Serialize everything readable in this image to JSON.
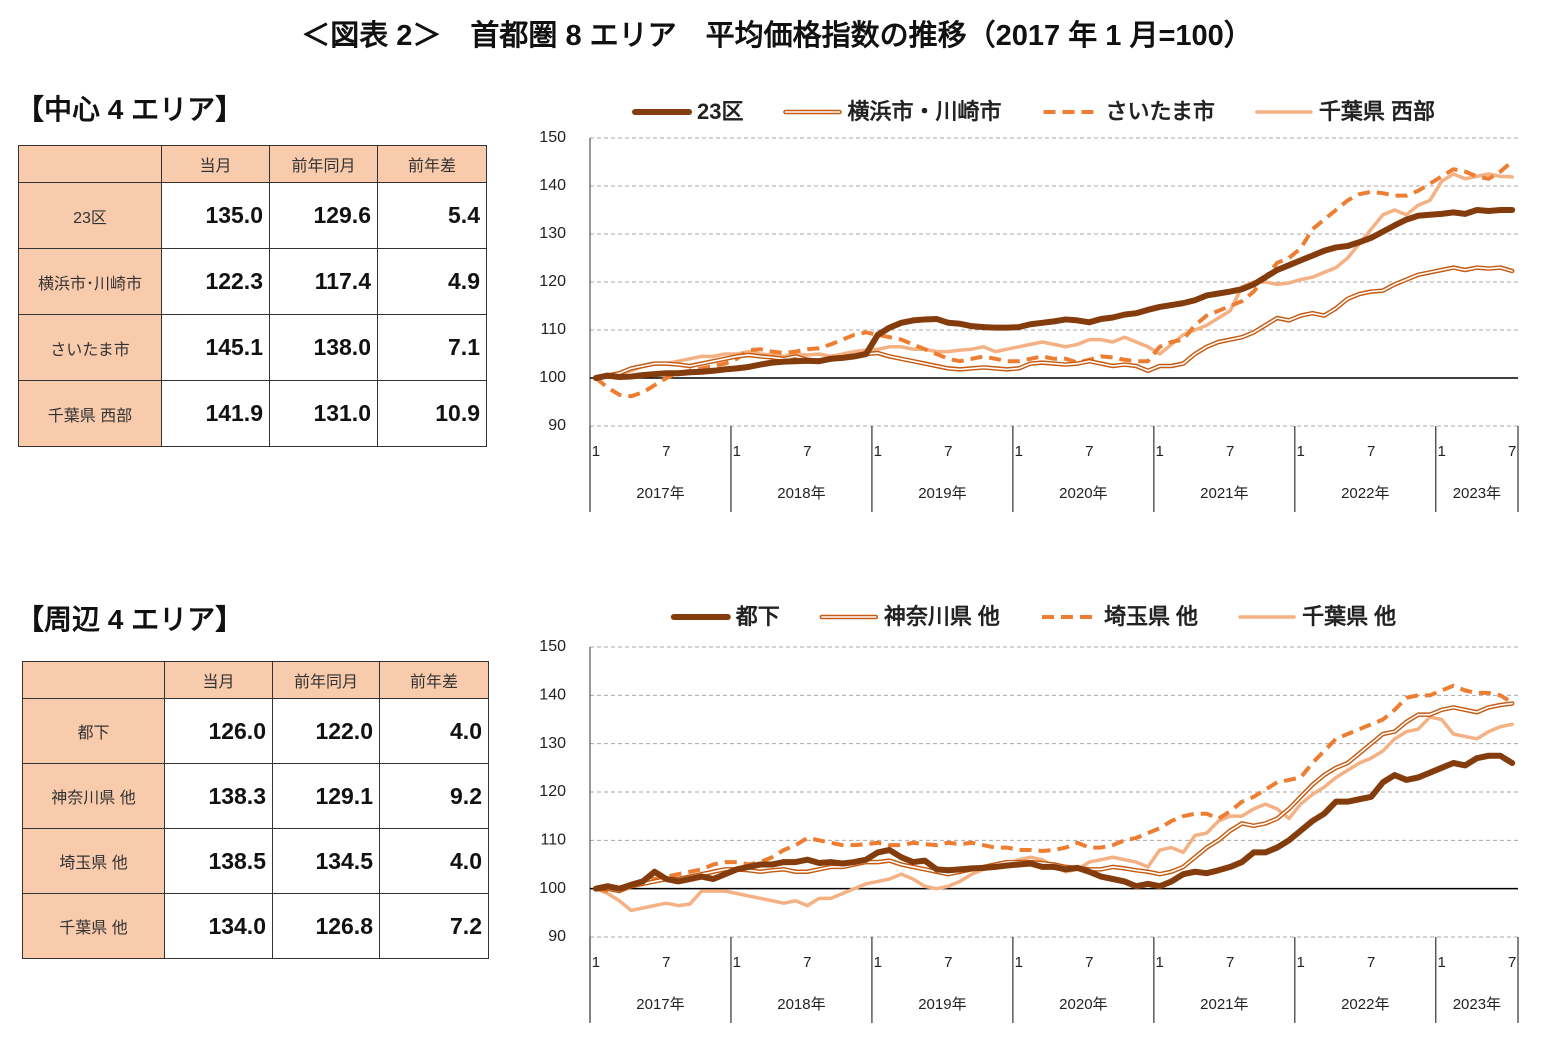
{
  "title": "＜図表 2＞　首都圏 8 エリア　平均価格指数の推移（2017 年 1 月=100）",
  "sections": [
    {
      "heading": "【中心 4 エリア】",
      "table": {
        "header": [
          "当月",
          "前年同月",
          "前年差"
        ],
        "rows": [
          [
            "23区",
            "135.0",
            "129.6",
            "5.4"
          ],
          [
            "横浜市･川崎市",
            "122.3",
            "117.4",
            "4.9"
          ],
          [
            "さいたま市",
            "145.1",
            "138.0",
            "7.1"
          ],
          [
            "千葉県 西部",
            "141.9",
            "131.0",
            "10.9"
          ]
        ]
      }
    },
    {
      "heading": "【周辺 4 エリア】",
      "table": {
        "header": [
          "当月",
          "前年同月",
          "前年差"
        ],
        "rows": [
          [
            "都下",
            "126.0",
            "122.0",
            "4.0"
          ],
          [
            "神奈川県 他",
            "138.3",
            "129.1",
            "9.2"
          ],
          [
            "埼玉県 他",
            "138.5",
            "134.5",
            "4.0"
          ],
          [
            "千葉県 他",
            "134.0",
            "126.8",
            "7.2"
          ]
        ]
      }
    }
  ],
  "chart_data": [
    {
      "type": "line",
      "categories": [
        "1",
        null,
        null,
        null,
        null,
        null,
        "7",
        null,
        null,
        null,
        null,
        null,
        "1",
        null,
        null,
        null,
        null,
        null,
        "7",
        null,
        null,
        null,
        null,
        null,
        "1",
        null,
        null,
        null,
        null,
        null,
        "7",
        null,
        null,
        null,
        null,
        null,
        "1",
        null,
        null,
        null,
        null,
        null,
        "7",
        null,
        null,
        null,
        null,
        null,
        "1",
        null,
        null,
        null,
        null,
        null,
        "7",
        null,
        null,
        null,
        null,
        null,
        "1",
        null,
        null,
        null,
        null,
        null,
        "7",
        null,
        null,
        null,
        null,
        null,
        "1",
        null,
        null,
        null,
        null,
        null,
        "7"
      ],
      "year_labels": [
        "2017年",
        "2018年",
        "2019年",
        "2020年",
        "2021年",
        "2022年",
        "2023年"
      ],
      "ylim": [
        90,
        150
      ],
      "yticks": [
        90,
        100,
        110,
        120,
        130,
        140,
        150
      ],
      "grid": true,
      "baseline": 100,
      "series": [
        {
          "name": "23区",
          "color": "#843c0c",
          "style": "solid",
          "values": [
            100,
            100.5,
            100.2,
            100.3,
            100.6,
            100.8,
            101,
            101,
            101.2,
            101.3,
            101.5,
            101.8,
            102,
            102.3,
            102.8,
            103.2,
            103.4,
            103.5,
            103.6,
            103.5,
            104,
            104.2,
            104.5,
            105,
            109,
            110.5,
            111.5,
            112,
            112.2,
            112.3,
            111.5,
            111.3,
            110.8,
            110.6,
            110.5,
            110.5,
            110.6,
            111.2,
            111.5,
            111.8,
            112.2,
            112,
            111.6,
            112.3,
            112.6,
            113.2,
            113.5,
            114.2,
            114.8,
            115.2,
            115.6,
            116.2,
            117.2,
            117.6,
            118,
            118.5,
            119.5,
            121,
            122.5,
            123.5,
            124.5,
            125.5,
            126.5,
            127.2,
            127.5,
            128.3,
            129.2,
            130.5,
            131.8,
            133,
            133.8,
            134,
            134.2,
            134.5,
            134.2,
            135,
            134.8,
            135,
            135.0
          ]
        },
        {
          "name": "横浜市・川崎市",
          "color": "#c55a11",
          "style": "double",
          "values": [
            100,
            100.5,
            101,
            102,
            102.5,
            103,
            103,
            102.8,
            102.5,
            103,
            103.5,
            104,
            104.5,
            104.8,
            104.5,
            104.3,
            104,
            104.5,
            103.8,
            103.5,
            104,
            104.3,
            104.5,
            105,
            105.2,
            104.5,
            104,
            103.5,
            103,
            102.5,
            102,
            101.8,
            102,
            102.2,
            102,
            101.8,
            102,
            103,
            103.2,
            103,
            102.8,
            103,
            103.5,
            103,
            102.5,
            102.8,
            102.5,
            101.5,
            102.5,
            102.5,
            103,
            105,
            106.5,
            107.5,
            108,
            108.5,
            109.5,
            111,
            112.5,
            112,
            113,
            113.5,
            113,
            114.5,
            116.5,
            117.5,
            118,
            118.2,
            119.5,
            120.5,
            121.5,
            122,
            122.5,
            123,
            122.5,
            123,
            122.8,
            123,
            122.3
          ]
        },
        {
          "name": "さいたま市",
          "color": "#ed7d31",
          "style": "dashed",
          "values": [
            100,
            98,
            96.5,
            96.2,
            97,
            98.5,
            100,
            101,
            101.5,
            102,
            102.5,
            103,
            104,
            105.8,
            106,
            105.5,
            105.2,
            105.5,
            106,
            106.2,
            107,
            108,
            109,
            109.5,
            109,
            108.5,
            108,
            107,
            106,
            105,
            104,
            103.5,
            104,
            104.5,
            104,
            103.5,
            103.5,
            104,
            104.5,
            104,
            104,
            103.2,
            103.8,
            104.5,
            104.3,
            103.8,
            103.5,
            103.5,
            106.5,
            107.5,
            108,
            111,
            113,
            114,
            115,
            116,
            118,
            121,
            124,
            125,
            127,
            131,
            133,
            135,
            137,
            138.3,
            138.8,
            138.5,
            138,
            138,
            139,
            140.5,
            142,
            143.5,
            143,
            142,
            141.5,
            143,
            145.1
          ]
        },
        {
          "name": "千葉県 西部",
          "color": "#f4b183",
          "style": "solid",
          "values": [
            100,
            100.5,
            101,
            101.5,
            102.5,
            103,
            103,
            103.5,
            104,
            104.5,
            104.5,
            105,
            105,
            105.5,
            105,
            104.8,
            104.5,
            105,
            104.8,
            105,
            104.5,
            105,
            105.5,
            105.8,
            106,
            106.5,
            106.5,
            106,
            106,
            105.5,
            105.5,
            105.8,
            106,
            106.5,
            105.5,
            106,
            106.5,
            107,
            107.5,
            107,
            106.5,
            107,
            108,
            108,
            107.5,
            108.5,
            107.5,
            106.5,
            105,
            107,
            109,
            110,
            111,
            112.5,
            114,
            119,
            120,
            120,
            119.5,
            119.8,
            120.5,
            121,
            122,
            123,
            125,
            128,
            131,
            134,
            135,
            134,
            136,
            137,
            141,
            142.5,
            141.5,
            142,
            142.5,
            142,
            141.9
          ]
        }
      ]
    },
    {
      "type": "line",
      "categories": [
        "1",
        null,
        null,
        null,
        null,
        null,
        "7",
        null,
        null,
        null,
        null,
        null,
        "1",
        null,
        null,
        null,
        null,
        null,
        "7",
        null,
        null,
        null,
        null,
        null,
        "1",
        null,
        null,
        null,
        null,
        null,
        "7",
        null,
        null,
        null,
        null,
        null,
        "1",
        null,
        null,
        null,
        null,
        null,
        "7",
        null,
        null,
        null,
        null,
        null,
        "1",
        null,
        null,
        null,
        null,
        null,
        "7",
        null,
        null,
        null,
        null,
        null,
        "1",
        null,
        null,
        null,
        null,
        null,
        "7",
        null,
        null,
        null,
        null,
        null,
        "1",
        null,
        null,
        null,
        null,
        null,
        "7"
      ],
      "year_labels": [
        "2017年",
        "2018年",
        "2019年",
        "2020年",
        "2021年",
        "2022年",
        "2023年"
      ],
      "ylim": [
        90,
        150
      ],
      "yticks": [
        90,
        100,
        110,
        120,
        130,
        140,
        150
      ],
      "grid": true,
      "baseline": 100,
      "series": [
        {
          "name": "都下",
          "color": "#843c0c",
          "style": "solid",
          "values": [
            100,
            100.5,
            100,
            100.8,
            101.5,
            103.5,
            102,
            101.5,
            102,
            102.5,
            102,
            103,
            104,
            104.5,
            105,
            105,
            105.5,
            105.5,
            106,
            105.3,
            105.5,
            105.2,
            105.5,
            106,
            107.5,
            108,
            106.5,
            105.5,
            105.8,
            104,
            103.8,
            104,
            104.2,
            104.3,
            104.5,
            104.8,
            105,
            105.2,
            104.5,
            104.5,
            104,
            104.3,
            103.5,
            102.5,
            102,
            101.5,
            100.5,
            101,
            100.5,
            101.5,
            103,
            103.5,
            103.2,
            103.8,
            104.5,
            105.5,
            107.5,
            107.5,
            108.5,
            110,
            112,
            114,
            115.5,
            118,
            118,
            118.5,
            119,
            122,
            123.5,
            122.5,
            123,
            124,
            125,
            126,
            125.5,
            127,
            127.5,
            127.5,
            126.0
          ]
        },
        {
          "name": "神奈川県 他",
          "color": "#c55a11",
          "style": "double",
          "values": [
            100,
            100,
            99.5,
            100.5,
            101,
            101.5,
            102,
            102,
            102.5,
            103,
            103.5,
            104,
            104,
            103.8,
            103.5,
            103.8,
            104,
            103.5,
            103.5,
            104,
            104.5,
            104.5,
            105,
            105.5,
            105.5,
            105.8,
            105,
            104.5,
            104,
            103.5,
            103,
            103.5,
            104,
            104.5,
            105,
            105.5,
            105.5,
            105.5,
            105.3,
            105,
            104.5,
            104.3,
            104,
            104,
            104.5,
            104.2,
            103.8,
            103.5,
            103,
            103.5,
            104.5,
            106.5,
            108.5,
            110,
            112,
            113.5,
            113,
            113.5,
            114.5,
            116.5,
            119,
            121.5,
            123.5,
            125,
            126,
            128,
            130,
            132,
            132.5,
            134.5,
            136,
            136,
            137,
            137.5,
            137,
            136.5,
            137.5,
            138,
            138.3
          ]
        },
        {
          "name": "埼玉県 他",
          "color": "#ed7d31",
          "style": "dashed",
          "values": [
            100,
            99.5,
            100,
            100.5,
            101.5,
            102,
            102.5,
            103,
            103.5,
            104,
            105,
            105.5,
            105.5,
            105,
            105.5,
            106.5,
            108,
            109,
            110.5,
            110,
            109.5,
            109,
            109,
            109.2,
            109.5,
            109,
            109,
            109.5,
            109.2,
            109,
            109.5,
            109.2,
            109.5,
            109,
            108.5,
            108.5,
            108,
            108,
            107.8,
            108,
            108.5,
            109.5,
            108.5,
            108.5,
            109,
            110,
            110.5,
            111.5,
            112.5,
            114,
            115,
            115.5,
            115.5,
            114.5,
            116,
            118,
            119,
            120.5,
            122,
            122.5,
            123,
            126,
            128.5,
            131,
            132,
            133,
            134,
            135,
            137,
            139.5,
            140,
            140,
            141,
            142,
            141,
            140.5,
            140.5,
            140,
            138.5
          ]
        },
        {
          "name": "千葉県 他",
          "color": "#f4b183",
          "style": "solid",
          "values": [
            100,
            99,
            97.5,
            95.5,
            96,
            96.5,
            97,
            96.5,
            96.8,
            99.5,
            99.5,
            99.5,
            99,
            98.5,
            98,
            97.5,
            97,
            97.5,
            96.5,
            98,
            98,
            99,
            100,
            101,
            101.5,
            102,
            103,
            102,
            100.5,
            100,
            100.5,
            101.5,
            103,
            104,
            104.5,
            105,
            106,
            106.5,
            106,
            104.5,
            103.5,
            104,
            105.5,
            106,
            106.5,
            106,
            105.5,
            104.5,
            108,
            108.5,
            107.5,
            111,
            111.5,
            114,
            115,
            115,
            116.5,
            117.5,
            116.5,
            114.5,
            117.5,
            119.5,
            121,
            123,
            124.5,
            126,
            127,
            128.5,
            131,
            132.5,
            133,
            135.5,
            135,
            132,
            131.5,
            131,
            132.5,
            133.5,
            134.0
          ]
        }
      ]
    }
  ]
}
